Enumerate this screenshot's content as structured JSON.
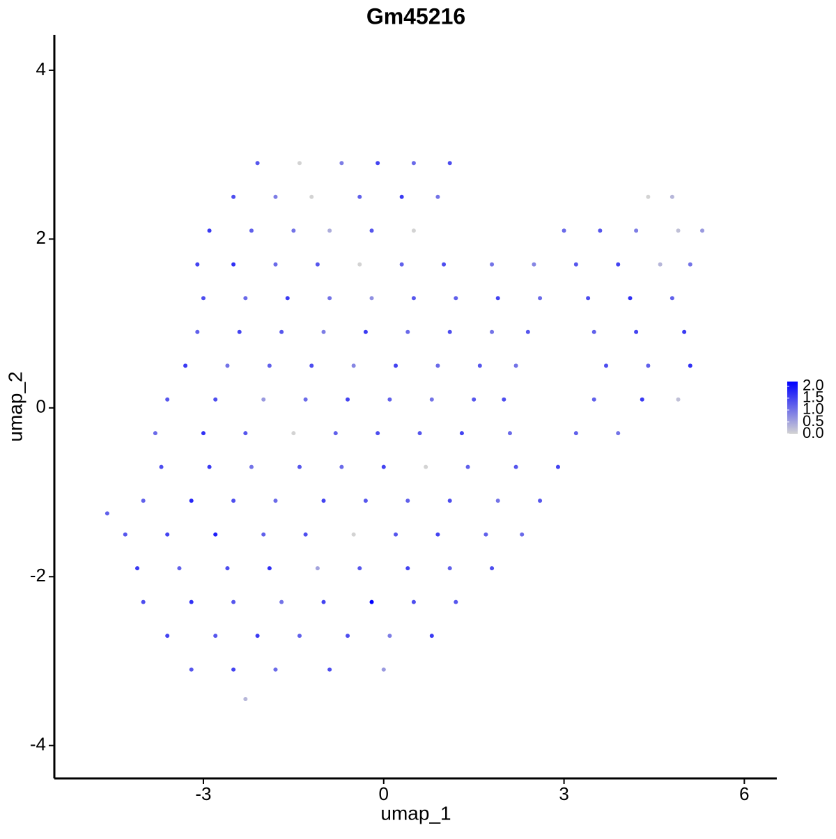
{
  "chart_data": {
    "type": "scatter",
    "title": "Gm45216",
    "xlabel": "umap_1",
    "ylabel": "umap_2",
    "x": [
      -2.1,
      -1.4,
      -0.7,
      -0.1,
      0.5,
      1.1,
      -2.5,
      -1.8,
      -1.2,
      -0.4,
      0.3,
      0.9,
      4.4,
      4.8,
      -2.9,
      -2.2,
      -1.5,
      -0.9,
      -0.2,
      0.5,
      3.0,
      3.6,
      4.2,
      4.9,
      5.3,
      -3.1,
      -2.5,
      -1.8,
      -1.1,
      -0.4,
      0.3,
      1.0,
      1.8,
      2.5,
      3.2,
      3.9,
      4.6,
      5.1,
      -3.0,
      -2.3,
      -1.6,
      -0.9,
      -0.2,
      0.5,
      1.2,
      1.9,
      2.6,
      3.4,
      4.1,
      4.8,
      -3.1,
      -2.4,
      -1.7,
      -1.0,
      -0.3,
      0.4,
      1.1,
      1.8,
      2.4,
      3.5,
      4.2,
      5.0,
      -3.3,
      -2.6,
      -1.9,
      -1.2,
      -0.5,
      0.2,
      0.9,
      1.6,
      2.2,
      3.7,
      4.4,
      5.1,
      -3.6,
      -2.8,
      -2.0,
      -1.3,
      -0.6,
      0.1,
      0.8,
      1.5,
      2.0,
      3.5,
      4.3,
      4.9,
      -3.8,
      -3.0,
      -2.3,
      -1.5,
      -0.8,
      -0.1,
      0.6,
      1.3,
      2.1,
      3.2,
      3.9,
      -3.7,
      -2.9,
      -2.2,
      -1.4,
      -0.7,
      0.0,
      0.7,
      1.4,
      2.2,
      2.9,
      -4.0,
      -3.2,
      -2.5,
      -1.8,
      -1.0,
      -0.3,
      0.4,
      1.1,
      1.9,
      2.6,
      -4.3,
      -3.6,
      -2.8,
      -2.0,
      -1.3,
      -0.5,
      0.2,
      0.9,
      1.7,
      2.3,
      -4.1,
      -3.4,
      -2.6,
      -1.9,
      -1.1,
      -0.4,
      0.4,
      1.1,
      1.8,
      -4.0,
      -3.2,
      -2.5,
      -1.7,
      -1.0,
      -0.2,
      0.5,
      1.2,
      -3.6,
      -2.8,
      -2.1,
      -1.4,
      -0.6,
      0.1,
      0.8,
      -3.2,
      -2.5,
      -1.8,
      -0.9,
      0.0,
      -2.3,
      -4.6
    ],
    "y": [
      2.9,
      2.9,
      2.9,
      2.9,
      2.9,
      2.9,
      2.5,
      2.5,
      2.5,
      2.5,
      2.5,
      2.5,
      2.5,
      2.5,
      2.1,
      2.1,
      2.1,
      2.1,
      2.1,
      2.1,
      2.1,
      2.1,
      2.1,
      2.1,
      2.1,
      1.7,
      1.7,
      1.7,
      1.7,
      1.7,
      1.7,
      1.7,
      1.7,
      1.7,
      1.7,
      1.7,
      1.7,
      1.7,
      1.3,
      1.3,
      1.3,
      1.3,
      1.3,
      1.3,
      1.3,
      1.3,
      1.3,
      1.3,
      1.3,
      1.3,
      0.9,
      0.9,
      0.9,
      0.9,
      0.9,
      0.9,
      0.9,
      0.9,
      0.9,
      0.9,
      0.9,
      0.9,
      0.5,
      0.5,
      0.5,
      0.5,
      0.5,
      0.5,
      0.5,
      0.5,
      0.5,
      0.5,
      0.5,
      0.5,
      0.1,
      0.1,
      0.1,
      0.1,
      0.1,
      0.1,
      0.1,
      0.1,
      0.1,
      0.1,
      0.1,
      0.1,
      -0.3,
      -0.3,
      -0.3,
      -0.3,
      -0.3,
      -0.3,
      -0.3,
      -0.3,
      -0.3,
      -0.3,
      -0.3,
      -0.7,
      -0.7,
      -0.7,
      -0.7,
      -0.7,
      -0.7,
      -0.7,
      -0.7,
      -0.7,
      -0.7,
      -1.1,
      -1.1,
      -1.1,
      -1.1,
      -1.1,
      -1.1,
      -1.1,
      -1.1,
      -1.1,
      -1.1,
      -1.5,
      -1.5,
      -1.5,
      -1.5,
      -1.5,
      -1.5,
      -1.5,
      -1.5,
      -1.5,
      -1.5,
      -1.9,
      -1.9,
      -1.9,
      -1.9,
      -1.9,
      -1.9,
      -1.9,
      -1.9,
      -1.9,
      -2.3,
      -2.3,
      -2.3,
      -2.3,
      -2.3,
      -2.3,
      -2.3,
      -2.3,
      -2.7,
      -2.7,
      -2.7,
      -2.7,
      -2.7,
      -2.7,
      -2.7,
      -3.1,
      -3.1,
      -3.1,
      -3.1,
      -3.1,
      -3.45,
      -1.25
    ],
    "values": [
      1.3,
      0,
      0.9,
      1.5,
      1.1,
      1.4,
      1.4,
      0.9,
      0,
      1.2,
      1.6,
      1.0,
      0,
      0.3,
      1.6,
      1.2,
      1.0,
      0.4,
      1.3,
      0,
      1.1,
      1.3,
      0.9,
      0.2,
      0.6,
      1.5,
      1.7,
      1.1,
      1.3,
      0,
      1.2,
      1.4,
      1.0,
      0.8,
      1.3,
      1.5,
      0.3,
      1.0,
      1.4,
      1.1,
      1.6,
      1.0,
      0.7,
      1.3,
      1.2,
      1.5,
      1.1,
      1.4,
      1.7,
      1.2,
      1.2,
      1.5,
      1.3,
      0.9,
      1.6,
      1.1,
      1.4,
      1.0,
      1.3,
      1.2,
      1.5,
      1.6,
      1.6,
      1.0,
      1.2,
      1.4,
      0.8,
      1.5,
      1.1,
      1.3,
      1.0,
      1.4,
      1.2,
      1.7,
      1.3,
      1.4,
      0.6,
      1.1,
      1.5,
      1.2,
      1.0,
      1.3,
      1.4,
      1.2,
      1.6,
      0.2,
      1.1,
      1.7,
      1.3,
      0,
      1.2,
      1.4,
      1.3,
      1.5,
      1.1,
      1.2,
      1.0,
      1.4,
      1.6,
      1.0,
      1.3,
      1.1,
      1.5,
      0,
      1.2,
      1.3,
      1.5,
      1.2,
      1.8,
      1.4,
      1.1,
      1.5,
      1.3,
      1.2,
      1.4,
      1.0,
      1.3,
      1.3,
      1.5,
      1.9,
      1.2,
      1.4,
      0,
      1.3,
      1.5,
      1.2,
      1.1,
      1.6,
      1.2,
      1.4,
      1.7,
      0.5,
      1.3,
      1.5,
      1.2,
      1.4,
      1.4,
      1.7,
      1.3,
      1.0,
      1.5,
      2.2,
      1.4,
      1.3,
      1.5,
      1.3,
      1.6,
      1.2,
      1.4,
      0.9,
      1.6,
      1.3,
      1.5,
      1.1,
      1.4,
      0.6,
      0.3,
      1.2
    ],
    "xlim": [
      -5.48,
      6.54
    ],
    "xticks": [
      -3,
      0,
      3,
      6
    ],
    "ylim": [
      -4.39,
      4.42
    ],
    "yticks": [
      -4,
      -2,
      0,
      2,
      4
    ],
    "color_scale": {
      "low": "#d3d3d3",
      "high": "#0000ff",
      "lim": [
        0,
        2.2
      ],
      "ticks": [
        {
          "value": 0,
          "label": "0.0"
        },
        0.5,
        {
          "value": 1,
          "label": "1.0"
        },
        1.5,
        {
          "value": 2,
          "label": "2.0"
        }
      ]
    }
  }
}
